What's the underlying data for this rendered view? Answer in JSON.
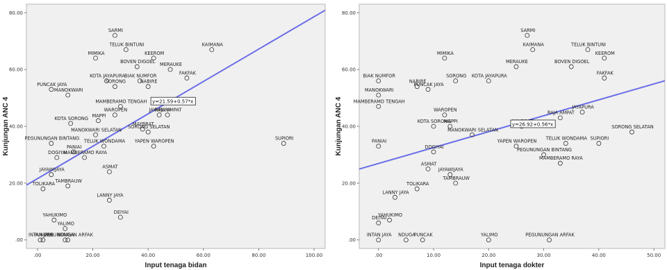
{
  "chart_data": [
    {
      "type": "scatter",
      "xlabel": "Input tenaga bidan",
      "ylabel": "Kunjungan ANC 4",
      "xlim": [
        -4,
        104
      ],
      "ylim": [
        -3,
        83
      ],
      "xticks": [
        ".00",
        "20.00",
        "40.00",
        "60.00",
        "80.00",
        "100.00"
      ],
      "xtick_values": [
        0,
        20,
        40,
        60,
        80,
        100
      ],
      "yticks": [
        ".00",
        "20.00",
        "40.00",
        "60.00",
        "80.00"
      ],
      "ytick_values": [
        0,
        20,
        40,
        60,
        80
      ],
      "fit_line": {
        "intercept": 21.59,
        "slope": 0.57,
        "color": "#6b6ee8"
      },
      "equation_label": "y=21.59+0.57*x",
      "equation_at": {
        "x": 41,
        "y": 48.5
      },
      "points": [
        {
          "label": "SARMI",
          "x": 28,
          "y": 72
        },
        {
          "label": "TELUK BINTUNI",
          "x": 32,
          "y": 67
        },
        {
          "label": "MIMIKA",
          "x": 21,
          "y": 64
        },
        {
          "label": "KEEROM",
          "x": 42,
          "y": 64
        },
        {
          "label": "KAIMANA",
          "x": 63,
          "y": 67
        },
        {
          "label": "BOVEN DIGOEL",
          "x": 36,
          "y": 61
        },
        {
          "label": "MERAUKE",
          "x": 48,
          "y": 60
        },
        {
          "label": "KOTA JAYAPURA",
          "x": 25,
          "y": 56
        },
        {
          "label": "BIAK NUMFOR",
          "x": 37,
          "y": 56
        },
        {
          "label": "FAKFAK",
          "x": 54,
          "y": 57
        },
        {
          "label": "PUNCAK JAYA",
          "x": 5,
          "y": 53
        },
        {
          "label": "SORONG",
          "x": 28,
          "y": 54
        },
        {
          "label": "NABIRE",
          "x": 40,
          "y": 54
        },
        {
          "label": "MANOKWARI",
          "x": 11,
          "y": 51
        },
        {
          "label": "MAMBERAMO TENGAH",
          "x": 30,
          "y": 47
        },
        {
          "label": "JAYAPURA",
          "x": 44,
          "y": 44
        },
        {
          "label": "RAJA AMPAT",
          "x": 47,
          "y": 44
        },
        {
          "label": "KOTA SORONG",
          "x": 12,
          "y": 41
        },
        {
          "label": "MAPPI",
          "x": 22,
          "y": 42
        },
        {
          "label": "WAROPEN",
          "x": 28,
          "y": 44
        },
        {
          "label": "MAYBRAT",
          "x": 38,
          "y": 39
        },
        {
          "label": "MANOKWARI SELATAN",
          "x": 21,
          "y": 37
        },
        {
          "label": "SORONG SELATAN",
          "x": 40,
          "y": 38
        },
        {
          "label": "PEGUNUNGAN BINTANG",
          "x": 5,
          "y": 34
        },
        {
          "label": "TELUK WONDAMA",
          "x": 24,
          "y": 33
        },
        {
          "label": "YAPEN WAROPEN",
          "x": 42,
          "y": 33
        },
        {
          "label": "SUPIORI",
          "x": 89,
          "y": 34
        },
        {
          "label": "PANIAI",
          "x": 13,
          "y": 31
        },
        {
          "label": "DOGIYAI",
          "x": 7,
          "y": 29
        },
        {
          "label": "MAMBERAMO RAYA",
          "x": 17,
          "y": 29
        },
        {
          "label": "JAYAWIJAYA",
          "x": 5,
          "y": 23
        },
        {
          "label": "ASMAT",
          "x": 26,
          "y": 24
        },
        {
          "label": "TOLIKARA",
          "x": 2,
          "y": 18
        },
        {
          "label": "TAMBRAUW",
          "x": 11,
          "y": 19
        },
        {
          "label": "LANNY JAYA",
          "x": 26,
          "y": 14
        },
        {
          "label": "YAHUKIMO",
          "x": 6,
          "y": 7
        },
        {
          "label": "DEIYAI",
          "x": 30,
          "y": 8
        },
        {
          "label": "YALIMO",
          "x": 10,
          "y": 4
        },
        {
          "label": "PUNCAK",
          "x": 2,
          "y": 0
        },
        {
          "label": "PEGUNUNGAN ARFAK",
          "x": 11,
          "y": 0
        },
        {
          "label": "INTAN JAYA",
          "x": 1,
          "y": 0
        },
        {
          "label": "NDUGA",
          "x": 10,
          "y": 0
        }
      ]
    },
    {
      "type": "scatter",
      "xlabel": "Input tenaga dokter",
      "ylabel": "Kunjungan ANC 4",
      "xlim": [
        -3.5,
        52
      ],
      "ylim": [
        -3,
        83
      ],
      "xticks": [
        ".00",
        "10.00",
        "20.00",
        "30.00",
        "40.00",
        "50.00"
      ],
      "xtick_values": [
        0,
        10,
        20,
        30,
        40,
        50
      ],
      "yticks": [
        ".00",
        "20.00",
        "40.00",
        "60.00",
        "80.00"
      ],
      "ytick_values": [
        0,
        20,
        40,
        60,
        80
      ],
      "fit_line": {
        "intercept": 26.92,
        "slope": 0.56,
        "color": "#6b6ee8"
      },
      "equation_label": "y=26.92+0.56*x",
      "equation_at": {
        "x": 24,
        "y": 40.5
      },
      "points": [
        {
          "label": "SARMI",
          "x": 27,
          "y": 72
        },
        {
          "label": "KAIMANA",
          "x": 28,
          "y": 67
        },
        {
          "label": "TELUK BINTUNI",
          "x": 38,
          "y": 67
        },
        {
          "label": "MIMIKA",
          "x": 12,
          "y": 64
        },
        {
          "label": "KEEROM",
          "x": 41,
          "y": 64
        },
        {
          "label": "MERAUKE",
          "x": 25,
          "y": 61
        },
        {
          "label": "BOVEN DIGOEL",
          "x": 35,
          "y": 61
        },
        {
          "label": "BIAK NUMFOR",
          "x": 0,
          "y": 56
        },
        {
          "label": "NABIRE",
          "x": 7,
          "y": 54
        },
        {
          "label": "SORONG",
          "x": 14,
          "y": 56
        },
        {
          "label": "KOTA JAYAPURA",
          "x": 20,
          "y": 56
        },
        {
          "label": "FAKFAK",
          "x": 41,
          "y": 57
        },
        {
          "label": "MANOKWARI",
          "x": 0,
          "y": 51
        },
        {
          "label": "PUNCAK JAYA",
          "x": 9,
          "y": 53
        },
        {
          "label": "MAMBERAMO TENGAH",
          "x": 0,
          "y": 47
        },
        {
          "label": "WAROPEN",
          "x": 12,
          "y": 44
        },
        {
          "label": "MAPPI",
          "x": 13,
          "y": 40
        },
        {
          "label": "KOTA SORONG",
          "x": 10,
          "y": 40
        },
        {
          "label": "MAYBRAT",
          "x": 26,
          "y": 40
        },
        {
          "label": "RAJA AMPAT",
          "x": 33,
          "y": 43
        },
        {
          "label": "JAYAPURA",
          "x": 37,
          "y": 45
        },
        {
          "label": "SORONG SELATAN",
          "x": 46,
          "y": 38
        },
        {
          "label": "MANOKWARI SELATAN",
          "x": 17,
          "y": 37
        },
        {
          "label": "PANIAI",
          "x": 0,
          "y": 33
        },
        {
          "label": "DOGIYAI",
          "x": 10,
          "y": 31
        },
        {
          "label": "TELUK WONDAMA",
          "x": 34,
          "y": 34
        },
        {
          "label": "SUPIORI",
          "x": 40,
          "y": 34
        },
        {
          "label": "YAPEN WAROPEN",
          "x": 25,
          "y": 33
        },
        {
          "label": "PEGUNUNGAN BINTANG",
          "x": 30,
          "y": 30
        },
        {
          "label": "MAMBERAMO RAYA",
          "x": 33,
          "y": 27
        },
        {
          "label": "ASMAT",
          "x": 9,
          "y": 25
        },
        {
          "label": "JAYAWIJAYA",
          "x": 13,
          "y": 23
        },
        {
          "label": "TOLIKARA",
          "x": 7,
          "y": 18
        },
        {
          "label": "TAMBRAUW",
          "x": 14,
          "y": 20
        },
        {
          "label": "LANNY JAYA",
          "x": 3,
          "y": 15
        },
        {
          "label": "DEIYAI",
          "x": 0,
          "y": 6
        },
        {
          "label": "YAHUKIMO",
          "x": 2,
          "y": 7
        },
        {
          "label": "INTAN JAYA",
          "x": 0,
          "y": 0
        },
        {
          "label": "PUNCAK",
          "x": 8,
          "y": 0
        },
        {
          "label": "NDUGA",
          "x": 5,
          "y": 0
        },
        {
          "label": "YALIMO",
          "x": 20,
          "y": 0
        },
        {
          "label": "PEGUNUNGAN ARFAK",
          "x": 31,
          "y": 0
        }
      ]
    }
  ]
}
